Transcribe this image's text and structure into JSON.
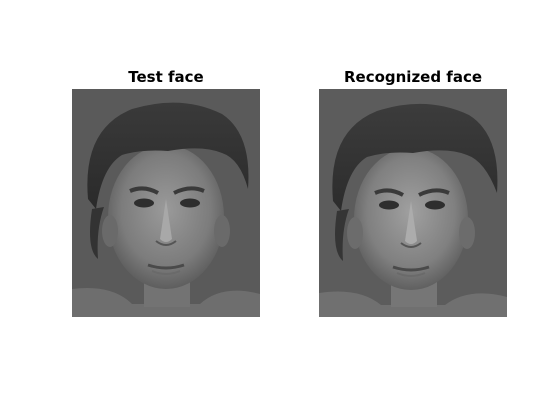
{
  "panels": [
    {
      "title": "Test face"
    },
    {
      "title": "Recognized face"
    }
  ]
}
